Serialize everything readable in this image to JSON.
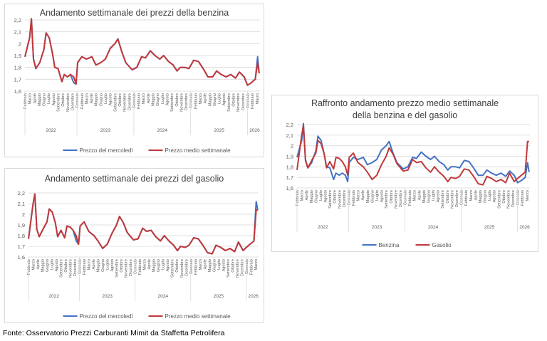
{
  "footer": "Fonte: Osservatorio Prezzi Carburanti Mimit da Staffetta Petrolifera",
  "x": [
    "2022-02-01",
    "2022-03-01",
    "2022-03-12",
    "2022-03-25",
    "2022-04-10",
    "2022-05-05",
    "2022-06-01",
    "2022-06-15",
    "2022-07-05",
    "2022-07-25",
    "2022-08-10",
    "2022-09-01",
    "2022-09-25",
    "2022-10-10",
    "2022-11-01",
    "2022-11-20",
    "2022-12-10",
    "2022-12-25",
    "2023-01-05",
    "2023-02-01",
    "2023-03-01",
    "2023-04-05",
    "2023-05-01",
    "2023-06-01",
    "2023-07-01",
    "2023-08-01",
    "2023-09-01",
    "2023-09-20",
    "2023-10-15",
    "2023-11-10",
    "2023-12-20",
    "2024-01-20",
    "2024-02-20",
    "2024-03-15",
    "2024-04-15",
    "2024-05-15",
    "2024-06-15",
    "2024-07-10",
    "2024-08-10",
    "2024-09-10",
    "2024-10-05",
    "2024-10-25",
    "2024-11-25",
    "2024-12-20",
    "2025-01-20",
    "2025-02-20",
    "2025-03-20",
    "2025-04-20",
    "2025-05-20",
    "2025-06-15",
    "2025-07-15",
    "2025-08-15",
    "2025-09-15",
    "2025-10-15",
    "2025-11-10",
    "2025-12-10",
    "2026-01-01",
    "2026-01-25",
    "2026-02-20",
    "2026-03-05",
    "2026-03-15"
  ],
  "months": [
    "Gennaio",
    "Febbraio",
    "Marzo",
    "Aprile",
    "Maggio",
    "Giugno",
    "Luglio",
    "Agosto",
    "Settembre",
    "Ottobre",
    "Novembre",
    "Dicembre"
  ],
  "years": [
    "2022",
    "2023",
    "2024",
    "2025",
    "2026"
  ],
  "chart_data": [
    {
      "type": "line",
      "title": "Andamento settimanale dei prezzi della benzina",
      "yticks": [
        "2,2",
        "2,1",
        "2",
        "1,9",
        "1,8",
        "1,7",
        "1,6"
      ],
      "ylim": [
        1.6,
        2.2
      ],
      "grid": true,
      "legend": "bottom",
      "series": [
        {
          "name": "Prezzo del mercoledì",
          "color": "#4472c4",
          "values": [
            1.89,
            2.05,
            2.21,
            1.87,
            1.79,
            1.84,
            1.95,
            2.09,
            2.05,
            1.92,
            1.8,
            1.79,
            1.68,
            1.74,
            1.72,
            1.74,
            1.67,
            1.66,
            1.84,
            1.89,
            1.87,
            1.89,
            1.82,
            1.84,
            1.87,
            1.96,
            2.0,
            2.04,
            1.93,
            1.84,
            1.78,
            1.8,
            1.89,
            1.88,
            1.94,
            1.9,
            1.87,
            1.9,
            1.85,
            1.82,
            1.77,
            1.8,
            1.8,
            1.79,
            1.86,
            1.85,
            1.79,
            1.72,
            1.72,
            1.77,
            1.74,
            1.72,
            1.74,
            1.71,
            1.76,
            1.72,
            1.65,
            1.67,
            1.7,
            1.89,
            1.75
          ]
        },
        {
          "name": "Prezzo medio settimanale",
          "color": "#c0393b",
          "values": [
            1.89,
            2.05,
            2.21,
            1.87,
            1.79,
            1.84,
            1.95,
            2.09,
            2.05,
            1.92,
            1.8,
            1.79,
            1.68,
            1.74,
            1.72,
            1.74,
            1.72,
            1.66,
            1.84,
            1.89,
            1.87,
            1.89,
            1.82,
            1.84,
            1.87,
            1.96,
            2.0,
            2.04,
            1.93,
            1.84,
            1.78,
            1.8,
            1.89,
            1.88,
            1.94,
            1.9,
            1.87,
            1.9,
            1.85,
            1.82,
            1.77,
            1.8,
            1.8,
            1.79,
            1.86,
            1.85,
            1.79,
            1.72,
            1.72,
            1.77,
            1.74,
            1.72,
            1.74,
            1.71,
            1.76,
            1.72,
            1.65,
            1.67,
            1.7,
            1.84,
            1.75
          ]
        }
      ]
    },
    {
      "type": "line",
      "title": "Andamento settimanale dei prezzi del gasolio",
      "yticks": [
        "2,2",
        "2,1",
        "2",
        "1,9",
        "1,8",
        "1,7",
        "1,6"
      ],
      "ylim": [
        1.6,
        2.2
      ],
      "grid": true,
      "legend": "bottom",
      "series": [
        {
          "name": "Prezzo del mercoledì",
          "color": "#4472c4",
          "values": [
            1.77,
            2.1,
            2.19,
            1.86,
            1.79,
            1.86,
            1.93,
            2.05,
            2.02,
            1.92,
            1.79,
            1.85,
            1.78,
            1.89,
            1.88,
            1.85,
            1.75,
            1.72,
            1.89,
            1.93,
            1.84,
            1.8,
            1.75,
            1.68,
            1.72,
            1.82,
            1.9,
            1.98,
            1.92,
            1.83,
            1.76,
            1.77,
            1.87,
            1.84,
            1.85,
            1.79,
            1.75,
            1.8,
            1.75,
            1.71,
            1.66,
            1.7,
            1.69,
            1.71,
            1.78,
            1.77,
            1.71,
            1.64,
            1.63,
            1.71,
            1.69,
            1.66,
            1.68,
            1.65,
            1.74,
            1.66,
            1.69,
            1.72,
            1.75,
            2.12,
            2.04
          ]
        },
        {
          "name": "Prezzo medio settimanale",
          "color": "#c0393b",
          "values": [
            1.77,
            2.1,
            2.19,
            1.86,
            1.79,
            1.86,
            1.93,
            2.05,
            2.02,
            1.92,
            1.79,
            1.85,
            1.78,
            1.89,
            1.88,
            1.85,
            1.8,
            1.72,
            1.89,
            1.93,
            1.84,
            1.8,
            1.75,
            1.68,
            1.72,
            1.82,
            1.9,
            1.98,
            1.92,
            1.83,
            1.76,
            1.77,
            1.87,
            1.84,
            1.85,
            1.79,
            1.75,
            1.8,
            1.75,
            1.71,
            1.66,
            1.7,
            1.69,
            1.71,
            1.78,
            1.77,
            1.71,
            1.64,
            1.63,
            1.71,
            1.69,
            1.66,
            1.68,
            1.65,
            1.74,
            1.66,
            1.69,
            1.72,
            1.75,
            2.04,
            2.04
          ]
        }
      ]
    },
    {
      "type": "line",
      "title": "Raffronto andamento prezzo medio settimanale",
      "subtitle": "della benzina e del gasolio",
      "yticks": [
        "2,2",
        "2,1",
        "2",
        "1,9",
        "1,8",
        "1,7",
        "1,6"
      ],
      "ylim": [
        1.6,
        2.2
      ],
      "grid": true,
      "legend": "bottom",
      "series": [
        {
          "name": "Benzina",
          "color": "#4472c4",
          "values": [
            1.89,
            2.05,
            2.21,
            1.87,
            1.79,
            1.84,
            1.95,
            2.09,
            2.05,
            1.92,
            1.8,
            1.79,
            1.68,
            1.74,
            1.72,
            1.74,
            1.72,
            1.66,
            1.84,
            1.89,
            1.87,
            1.89,
            1.82,
            1.84,
            1.87,
            1.96,
            2.0,
            2.04,
            1.93,
            1.84,
            1.78,
            1.8,
            1.89,
            1.88,
            1.94,
            1.9,
            1.87,
            1.9,
            1.85,
            1.82,
            1.77,
            1.8,
            1.8,
            1.79,
            1.86,
            1.85,
            1.79,
            1.72,
            1.72,
            1.77,
            1.74,
            1.72,
            1.74,
            1.71,
            1.76,
            1.72,
            1.65,
            1.67,
            1.7,
            1.84,
            1.75
          ]
        },
        {
          "name": "Gasolio",
          "color": "#c0393b",
          "values": [
            1.77,
            2.1,
            2.19,
            1.86,
            1.79,
            1.86,
            1.93,
            2.05,
            2.02,
            1.92,
            1.79,
            1.85,
            1.78,
            1.89,
            1.88,
            1.85,
            1.8,
            1.72,
            1.89,
            1.93,
            1.84,
            1.8,
            1.75,
            1.68,
            1.72,
            1.82,
            1.9,
            1.98,
            1.92,
            1.83,
            1.76,
            1.77,
            1.87,
            1.84,
            1.85,
            1.79,
            1.75,
            1.8,
            1.75,
            1.71,
            1.66,
            1.7,
            1.69,
            1.71,
            1.78,
            1.77,
            1.71,
            1.64,
            1.63,
            1.71,
            1.69,
            1.66,
            1.68,
            1.65,
            1.74,
            1.66,
            1.69,
            1.72,
            1.75,
            2.04,
            2.04
          ]
        }
      ]
    }
  ]
}
